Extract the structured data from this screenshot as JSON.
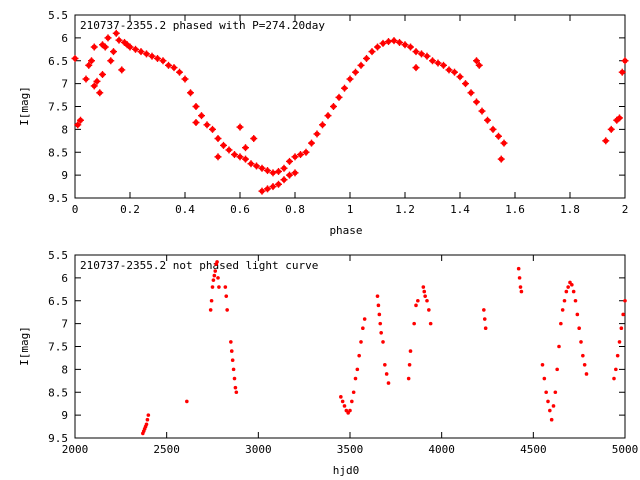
{
  "chart_data": [
    {
      "type": "scatter",
      "title": "210737-2355.2 phased with P=274.20day",
      "xlabel": "phase",
      "ylabel": "I[mag]",
      "xlim": [
        0,
        2
      ],
      "ylim": [
        9.5,
        5.5
      ],
      "y_inverted": true,
      "grid": false,
      "legend": "none",
      "marker": "star",
      "color": "#ff0000",
      "xticks": [
        "0",
        "0.2",
        "0.4",
        "0.6",
        "0.8",
        "1",
        "1.2",
        "1.4",
        "1.6",
        "1.8",
        "2"
      ],
      "yticks": [
        "5.5",
        "6",
        "6.5",
        "7",
        "7.5",
        "8",
        "8.5",
        "9",
        "9.5"
      ],
      "series": [
        {
          "points": [
            [
              0.0,
              6.45
            ],
            [
              0.01,
              7.9
            ],
            [
              0.02,
              7.8
            ],
            [
              0.04,
              6.9
            ],
            [
              0.05,
              6.6
            ],
            [
              0.06,
              6.5
            ],
            [
              0.07,
              6.2
            ],
            [
              0.07,
              7.05
            ],
            [
              0.08,
              6.95
            ],
            [
              0.09,
              7.2
            ],
            [
              0.1,
              6.15
            ],
            [
              0.1,
              6.8
            ],
            [
              0.11,
              6.2
            ],
            [
              0.12,
              6.0
            ],
            [
              0.13,
              6.5
            ],
            [
              0.14,
              6.3
            ],
            [
              0.15,
              5.9
            ],
            [
              0.16,
              6.05
            ],
            [
              0.17,
              6.7
            ],
            [
              0.18,
              6.1
            ],
            [
              0.19,
              6.15
            ],
            [
              0.2,
              6.2
            ],
            [
              0.22,
              6.25
            ],
            [
              0.24,
              6.3
            ],
            [
              0.26,
              6.35
            ],
            [
              0.28,
              6.4
            ],
            [
              0.3,
              6.45
            ],
            [
              0.32,
              6.5
            ],
            [
              0.34,
              6.6
            ],
            [
              0.36,
              6.65
            ],
            [
              0.38,
              6.75
            ],
            [
              0.4,
              6.9
            ],
            [
              0.42,
              7.2
            ],
            [
              0.44,
              7.5
            ],
            [
              0.46,
              7.7
            ],
            [
              0.48,
              7.9
            ],
            [
              0.5,
              8.0
            ],
            [
              0.52,
              8.2
            ],
            [
              0.54,
              8.35
            ],
            [
              0.56,
              8.45
            ],
            [
              0.58,
              8.55
            ],
            [
              0.6,
              8.6
            ],
            [
              0.62,
              8.65
            ],
            [
              0.64,
              8.75
            ],
            [
              0.66,
              8.8
            ],
            [
              0.68,
              8.85
            ],
            [
              0.7,
              8.9
            ],
            [
              0.72,
              8.95
            ],
            [
              0.74,
              8.92
            ],
            [
              0.76,
              8.85
            ],
            [
              0.78,
              8.7
            ],
            [
              0.8,
              8.6
            ],
            [
              0.82,
              8.55
            ],
            [
              0.84,
              8.5
            ],
            [
              0.86,
              8.3
            ],
            [
              0.88,
              8.1
            ],
            [
              0.9,
              7.9
            ],
            [
              0.92,
              7.7
            ],
            [
              0.94,
              7.5
            ],
            [
              0.96,
              7.3
            ],
            [
              0.98,
              7.1
            ],
            [
              1.0,
              6.9
            ],
            [
              1.02,
              6.75
            ],
            [
              1.04,
              6.6
            ],
            [
              1.06,
              6.45
            ],
            [
              1.08,
              6.3
            ],
            [
              1.1,
              6.2
            ],
            [
              1.12,
              6.12
            ],
            [
              1.14,
              6.08
            ],
            [
              1.16,
              6.06
            ],
            [
              1.18,
              6.1
            ],
            [
              1.2,
              6.15
            ],
            [
              1.22,
              6.2
            ],
            [
              1.24,
              6.3
            ],
            [
              1.26,
              6.35
            ],
            [
              1.28,
              6.4
            ],
            [
              1.3,
              6.5
            ],
            [
              1.32,
              6.55
            ],
            [
              1.34,
              6.6
            ],
            [
              1.36,
              6.7
            ],
            [
              1.38,
              6.75
            ],
            [
              1.4,
              6.85
            ],
            [
              1.42,
              7.0
            ],
            [
              1.44,
              7.2
            ],
            [
              1.46,
              7.4
            ],
            [
              1.48,
              7.6
            ],
            [
              1.5,
              7.8
            ],
            [
              1.52,
              8.0
            ],
            [
              1.54,
              8.15
            ],
            [
              1.55,
              8.65
            ],
            [
              1.56,
              8.3
            ],
            [
              1.93,
              8.25
            ],
            [
              1.95,
              8.0
            ],
            [
              1.97,
              7.8
            ],
            [
              1.98,
              7.75
            ],
            [
              1.99,
              6.75
            ],
            [
              2.0,
              6.5
            ],
            [
              0.68,
              9.35
            ],
            [
              0.7,
              9.3
            ],
            [
              0.72,
              9.25
            ],
            [
              0.74,
              9.2
            ],
            [
              0.76,
              9.1
            ],
            [
              0.78,
              9.0
            ],
            [
              0.8,
              8.95
            ],
            [
              0.62,
              8.4
            ],
            [
              0.65,
              8.2
            ],
            [
              0.6,
              7.95
            ],
            [
              0.44,
              7.85
            ],
            [
              0.52,
              8.6
            ],
            [
              1.24,
              6.65
            ],
            [
              1.46,
              6.5
            ],
            [
              1.47,
              6.6
            ]
          ]
        }
      ]
    },
    {
      "type": "scatter",
      "title": "210737-2355.2 not phased light curve",
      "xlabel": "hjd0",
      "ylabel": "I[mag]",
      "xlim": [
        2000,
        5000
      ],
      "ylim": [
        9.5,
        5.5
      ],
      "y_inverted": true,
      "grid": false,
      "legend": "none",
      "marker": "dot",
      "color": "#ff0000",
      "xticks": [
        "2000",
        "2500",
        "3000",
        "3500",
        "4000",
        "4500",
        "5000"
      ],
      "yticks": [
        "5.5",
        "6",
        "6.5",
        "7",
        "7.5",
        "8",
        "8.5",
        "9",
        "9.5"
      ],
      "series": [
        {
          "points": [
            [
              2370,
              9.4
            ],
            [
              2375,
              9.35
            ],
            [
              2380,
              9.3
            ],
            [
              2385,
              9.25
            ],
            [
              2390,
              9.2
            ],
            [
              2395,
              9.1
            ],
            [
              2400,
              9.0
            ],
            [
              2610,
              8.7
            ],
            [
              2740,
              6.7
            ],
            [
              2745,
              6.5
            ],
            [
              2750,
              6.2
            ],
            [
              2755,
              6.05
            ],
            [
              2760,
              5.95
            ],
            [
              2765,
              5.85
            ],
            [
              2770,
              5.7
            ],
            [
              2775,
              5.65
            ],
            [
              2780,
              6.0
            ],
            [
              2785,
              6.2
            ],
            [
              2820,
              6.2
            ],
            [
              2825,
              6.4
            ],
            [
              2830,
              6.7
            ],
            [
              2850,
              7.4
            ],
            [
              2855,
              7.6
            ],
            [
              2860,
              7.8
            ],
            [
              2865,
              8.0
            ],
            [
              2870,
              8.2
            ],
            [
              2875,
              8.4
            ],
            [
              2880,
              8.5
            ],
            [
              3450,
              8.6
            ],
            [
              3460,
              8.7
            ],
            [
              3470,
              8.8
            ],
            [
              3480,
              8.9
            ],
            [
              3490,
              8.95
            ],
            [
              3500,
              8.9
            ],
            [
              3510,
              8.7
            ],
            [
              3520,
              8.5
            ],
            [
              3530,
              8.2
            ],
            [
              3540,
              8.0
            ],
            [
              3550,
              7.7
            ],
            [
              3560,
              7.4
            ],
            [
              3570,
              7.1
            ],
            [
              3580,
              6.9
            ],
            [
              3650,
              6.4
            ],
            [
              3655,
              6.6
            ],
            [
              3660,
              6.8
            ],
            [
              3665,
              7.0
            ],
            [
              3670,
              7.2
            ],
            [
              3680,
              7.4
            ],
            [
              3690,
              7.9
            ],
            [
              3700,
              8.1
            ],
            [
              3710,
              8.3
            ],
            [
              3820,
              8.2
            ],
            [
              3825,
              7.9
            ],
            [
              3830,
              7.6
            ],
            [
              3850,
              7.0
            ],
            [
              3860,
              6.6
            ],
            [
              3870,
              6.5
            ],
            [
              3900,
              6.2
            ],
            [
              3905,
              6.3
            ],
            [
              3910,
              6.4
            ],
            [
              3920,
              6.5
            ],
            [
              3930,
              6.7
            ],
            [
              3940,
              7.0
            ],
            [
              4230,
              6.7
            ],
            [
              4235,
              6.9
            ],
            [
              4240,
              7.1
            ],
            [
              4420,
              5.8
            ],
            [
              4425,
              6.0
            ],
            [
              4430,
              6.2
            ],
            [
              4435,
              6.3
            ],
            [
              4550,
              7.9
            ],
            [
              4560,
              8.2
            ],
            [
              4570,
              8.5
            ],
            [
              4580,
              8.7
            ],
            [
              4590,
              8.9
            ],
            [
              4600,
              9.1
            ],
            [
              4610,
              8.8
            ],
            [
              4620,
              8.5
            ],
            [
              4630,
              8.0
            ],
            [
              4640,
              7.5
            ],
            [
              4650,
              7.0
            ],
            [
              4660,
              6.7
            ],
            [
              4670,
              6.5
            ],
            [
              4680,
              6.3
            ],
            [
              4690,
              6.2
            ],
            [
              4700,
              6.1
            ],
            [
              4710,
              6.15
            ],
            [
              4720,
              6.3
            ],
            [
              4730,
              6.5
            ],
            [
              4740,
              6.8
            ],
            [
              4750,
              7.1
            ],
            [
              4760,
              7.4
            ],
            [
              4770,
              7.7
            ],
            [
              4780,
              7.9
            ],
            [
              4790,
              8.1
            ],
            [
              4940,
              8.2
            ],
            [
              4950,
              8.0
            ],
            [
              4960,
              7.7
            ],
            [
              4970,
              7.4
            ],
            [
              4980,
              7.1
            ],
            [
              4990,
              6.8
            ],
            [
              5000,
              6.5
            ]
          ]
        }
      ]
    }
  ]
}
